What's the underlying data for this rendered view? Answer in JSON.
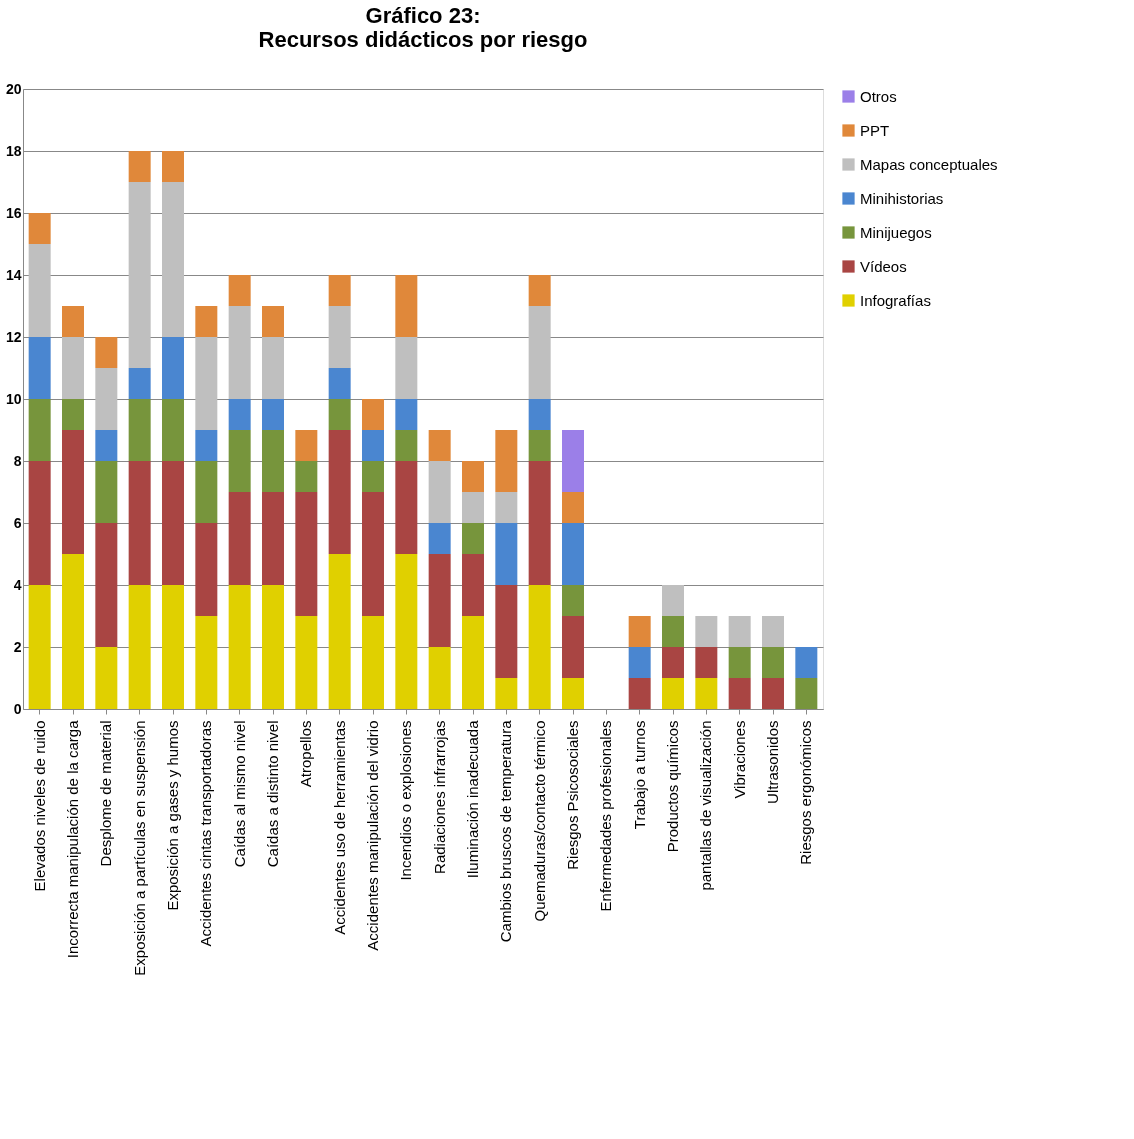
{
  "chart_data": {
    "type": "bar",
    "title": "Gráfico 23:\nRecursos didácticos por riesgo",
    "stacked": true,
    "grid": "y",
    "legend": "right",
    "categories": [
      "Elevados niveles de ruido",
      "Incorrecta manipulación de la carga",
      "Desplome de material",
      "Exposición a partículas en suspensión",
      "Exposición a gases y humos",
      "Accidentes cintas transportadoras",
      "Caídas al mismo nivel",
      "Caídas a distinto nivel",
      "Atropellos",
      "Accidentes uso de herramientas",
      "Accidentes manipulación del vidrio",
      "Incendios o explosiones",
      "Radiaciones infrarrojas",
      "Iluminación inadecuada",
      "Cambios bruscos de temperatura",
      "Quemaduras/contacto térmico",
      "Riesgos Psicosociales",
      "Enfermedades profesionales",
      "Trabajo a turnos",
      "Productos químicos",
      "pantallas de visualización",
      "Vibraciones",
      "Ultrasonidos",
      "Riesgos ergonómicos"
    ],
    "series": [
      {
        "name": "Infografías",
        "color": "#e0d000",
        "values": [
          4,
          5,
          2,
          4,
          4,
          3,
          4,
          4,
          3,
          5,
          3,
          5,
          2,
          3,
          1,
          4,
          1,
          0,
          0,
          1,
          1,
          0,
          0,
          0
        ]
      },
      {
        "name": "Vídeos",
        "color": "#a94543",
        "values": [
          4,
          4,
          4,
          4,
          4,
          3,
          3,
          3,
          4,
          4,
          4,
          3,
          3,
          2,
          3,
          4,
          2,
          0,
          1,
          1,
          1,
          1,
          1,
          0
        ]
      },
      {
        "name": "Minijuegos",
        "color": "#77953c",
        "values": [
          2,
          1,
          2,
          2,
          2,
          2,
          2,
          2,
          1,
          1,
          1,
          1,
          0,
          1,
          0,
          1,
          1,
          0,
          0,
          1,
          0,
          1,
          1,
          1
        ]
      },
      {
        "name": "Minihistorias",
        "color": "#4a86d0",
        "values": [
          2,
          0,
          1,
          1,
          2,
          1,
          1,
          1,
          0,
          1,
          1,
          1,
          1,
          0,
          2,
          1,
          2,
          0,
          1,
          0,
          0,
          0,
          0,
          1
        ]
      },
      {
        "name": "Mapas conceptuales",
        "color": "#bfbfbf",
        "values": [
          3,
          2,
          2,
          6,
          5,
          3,
          3,
          2,
          0,
          2,
          0,
          2,
          2,
          1,
          1,
          3,
          0,
          0,
          0,
          1,
          1,
          1,
          1,
          0
        ]
      },
      {
        "name": "PPT",
        "color": "#e0883a",
        "values": [
          1,
          1,
          1,
          1,
          1,
          1,
          1,
          1,
          1,
          1,
          1,
          2,
          1,
          1,
          2,
          1,
          1,
          0,
          1,
          0,
          0,
          0,
          0,
          0
        ]
      },
      {
        "name": "Otros",
        "color": "#9b7fe8",
        "values": [
          0,
          0,
          0,
          0,
          0,
          0,
          0,
          0,
          0,
          0,
          0,
          0,
          0,
          0,
          0,
          0,
          2,
          0,
          0,
          0,
          0,
          0,
          0,
          0
        ]
      }
    ],
    "ylim": [
      0,
      20
    ],
    "yticks": [
      0,
      2,
      4,
      6,
      8,
      10,
      12,
      14,
      16,
      18,
      20
    ]
  }
}
